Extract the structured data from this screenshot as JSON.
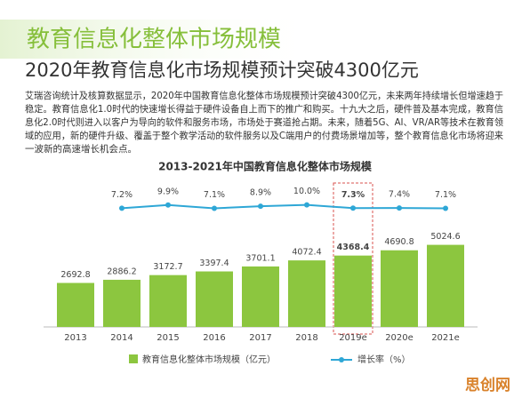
{
  "header": {
    "title": "教育信息化整体市场规模",
    "subtitle": "2020年教育信息化市场规模预计突破4300亿元",
    "body": [
      "艾瑞咨询统计及核算数据显示，2020年中国教育信息化整体市场规模预计突破4300亿元，未来两年持续增长但增速趋于",
      "稳定。教育信息化1.0时代的快速增长得益于硬件设备自上而下的推广和购买。十九大之后，硬件普及基本完成，教育信",
      "息化2.0时代则进入以客户为导向的软件和服务市场，市场处于赛道抢占期。未来，随着5G、AI、VR/AR等技术在教育领",
      "域的应用，新的硬件升级、覆盖于整个教学活动的软件服务以及C端用户的付费场景增加等，整个教育信息化市场将迎来",
      "一波新的高速增长机会点。"
    ]
  },
  "chart_data": {
    "type": "bar",
    "title": "2013-2021年中国教育信息化整体市场规模",
    "categories": [
      "2013",
      "2014",
      "2015",
      "2016",
      "2017",
      "2018",
      "2019e",
      "2020e",
      "2021e"
    ],
    "series": [
      {
        "name": "教育信息化整体市场规模（亿元）",
        "type": "bar",
        "color": "#8cc63f",
        "values": [
          2692.8,
          2886.2,
          3172.7,
          3397.4,
          3701.1,
          4072.4,
          4368.4,
          4690.8,
          5024.6
        ]
      },
      {
        "name": "增长率（%）",
        "type": "line",
        "axis": "y2",
        "color": "#2ea7d6",
        "values": [
          null,
          7.2,
          9.9,
          7.1,
          8.9,
          10.0,
          7.3,
          7.4,
          7.1
        ],
        "value_labels": [
          null,
          "7.2%",
          "9.9%",
          "7.1%",
          "8.9%",
          "10.0%",
          "7.3%",
          "7.4%",
          "7.1%"
        ]
      }
    ],
    "ylim": [
      0,
      8700
    ],
    "y2lim": [
      -93,
      27
    ],
    "highlight": "2019e",
    "legend": "bottom"
  },
  "watermark": "思创网"
}
